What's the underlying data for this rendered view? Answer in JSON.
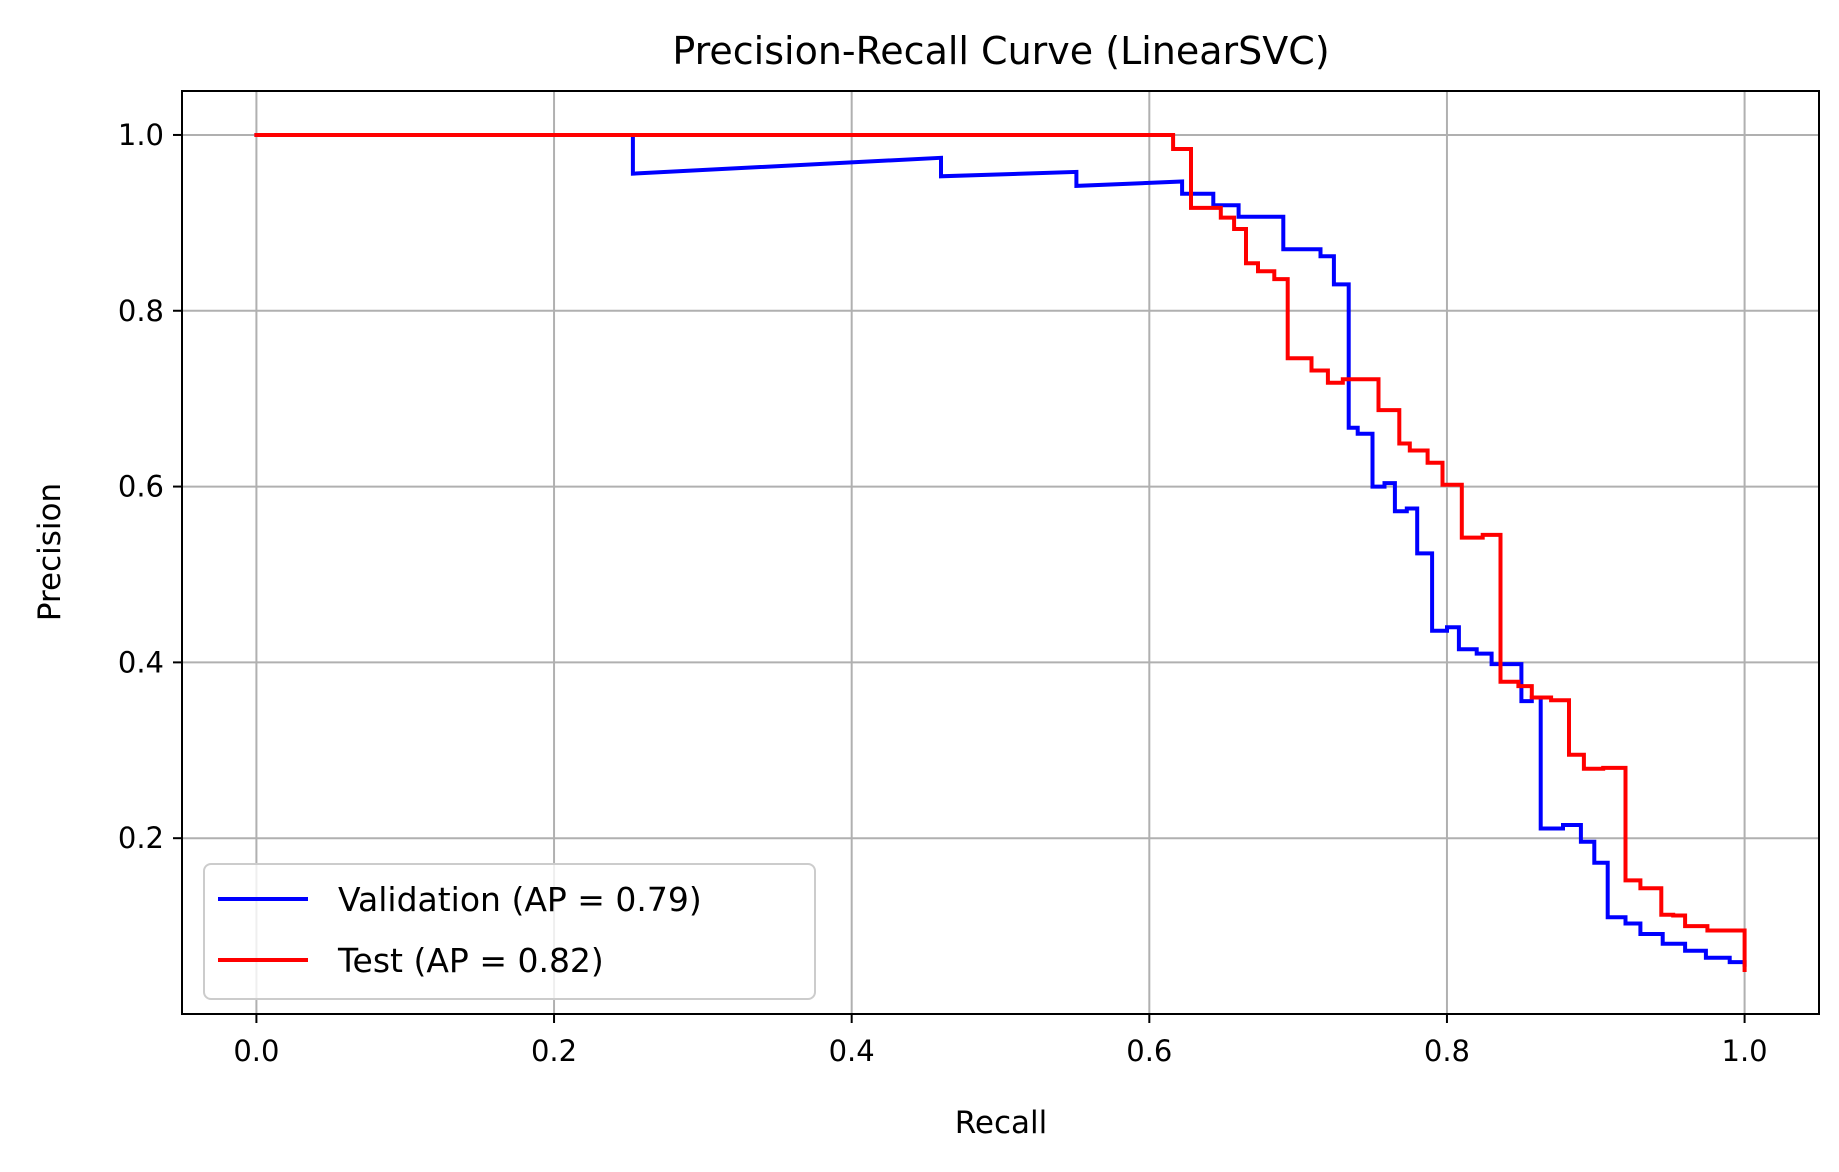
{
  "chart_data": {
    "type": "line",
    "title": "Precision-Recall Curve (LinearSVC)",
    "xlabel": "Recall",
    "ylabel": "Precision",
    "xlim": [
      -0.05,
      1.05
    ],
    "ylim": [
      0.0,
      1.05
    ],
    "xticks": [
      "0.0",
      "0.2",
      "0.4",
      "0.6",
      "0.8",
      "1.0"
    ],
    "yticks": [
      "0.2",
      "0.4",
      "0.6",
      "0.8",
      "1.0"
    ],
    "grid": true,
    "legend_position": "lower-left",
    "series": [
      {
        "name": "Validation (AP = 0.79)",
        "color": "#0000ff",
        "x": [
          0.0,
          0.253,
          0.253,
          0.46,
          0.46,
          0.551,
          0.551,
          0.622,
          0.622,
          0.643,
          0.643,
          0.66,
          0.66,
          0.69,
          0.69,
          0.715,
          0.715,
          0.724,
          0.724,
          0.734,
          0.734,
          0.74,
          0.74,
          0.75,
          0.75,
          0.758,
          0.758,
          0.765,
          0.765,
          0.773,
          0.773,
          0.78,
          0.78,
          0.79,
          0.79,
          0.8,
          0.8,
          0.808,
          0.808,
          0.82,
          0.82,
          0.83,
          0.83,
          0.85,
          0.85,
          0.857,
          0.857,
          0.863,
          0.863,
          0.878,
          0.878,
          0.89,
          0.89,
          0.899,
          0.899,
          0.908,
          0.908,
          0.92,
          0.92,
          0.93,
          0.93,
          0.945,
          0.945,
          0.96,
          0.96,
          0.974,
          0.974,
          0.99,
          0.99,
          1.0,
          1.0
        ],
        "y": [
          1.0,
          1.0,
          0.956,
          0.974,
          0.953,
          0.958,
          0.942,
          0.947,
          0.933,
          0.933,
          0.92,
          0.92,
          0.907,
          0.907,
          0.87,
          0.87,
          0.862,
          0.862,
          0.83,
          0.83,
          0.667,
          0.667,
          0.66,
          0.66,
          0.6,
          0.6,
          0.604,
          0.604,
          0.572,
          0.572,
          0.575,
          0.575,
          0.524,
          0.524,
          0.436,
          0.436,
          0.44,
          0.44,
          0.415,
          0.415,
          0.41,
          0.41,
          0.398,
          0.398,
          0.356,
          0.356,
          0.36,
          0.36,
          0.211,
          0.211,
          0.215,
          0.215,
          0.196,
          0.196,
          0.172,
          0.172,
          0.11,
          0.11,
          0.103,
          0.103,
          0.091,
          0.091,
          0.08,
          0.08,
          0.072,
          0.072,
          0.064,
          0.064,
          0.059,
          0.059,
          0.056
        ]
      },
      {
        "name": "Test (AP = 0.82)",
        "color": "#ff0000",
        "x": [
          0.0,
          0.616,
          0.616,
          0.628,
          0.628,
          0.64,
          0.64,
          0.648,
          0.648,
          0.657,
          0.657,
          0.665,
          0.665,
          0.673,
          0.673,
          0.684,
          0.684,
          0.693,
          0.693,
          0.709,
          0.709,
          0.72,
          0.72,
          0.73,
          0.73,
          0.754,
          0.754,
          0.768,
          0.768,
          0.775,
          0.775,
          0.787,
          0.787,
          0.797,
          0.797,
          0.81,
          0.81,
          0.824,
          0.824,
          0.836,
          0.836,
          0.848,
          0.848,
          0.857,
          0.857,
          0.87,
          0.87,
          0.882,
          0.882,
          0.892,
          0.892,
          0.905,
          0.905,
          0.92,
          0.92,
          0.93,
          0.93,
          0.944,
          0.944,
          0.952,
          0.952,
          0.96,
          0.96,
          0.975,
          0.975,
          1.0,
          1.0
        ],
        "y": [
          1.0,
          1.0,
          0.984,
          0.984,
          0.917,
          0.917,
          0.917,
          0.917,
          0.906,
          0.906,
          0.893,
          0.893,
          0.854,
          0.854,
          0.845,
          0.845,
          0.836,
          0.836,
          0.746,
          0.746,
          0.732,
          0.732,
          0.718,
          0.718,
          0.722,
          0.722,
          0.687,
          0.687,
          0.649,
          0.649,
          0.641,
          0.641,
          0.627,
          0.627,
          0.602,
          0.602,
          0.542,
          0.542,
          0.545,
          0.545,
          0.378,
          0.378,
          0.373,
          0.373,
          0.36,
          0.36,
          0.357,
          0.357,
          0.295,
          0.295,
          0.279,
          0.279,
          0.28,
          0.28,
          0.152,
          0.152,
          0.143,
          0.143,
          0.113,
          0.113,
          0.112,
          0.112,
          0.1,
          0.1,
          0.095,
          0.095,
          0.05
        ]
      }
    ]
  }
}
